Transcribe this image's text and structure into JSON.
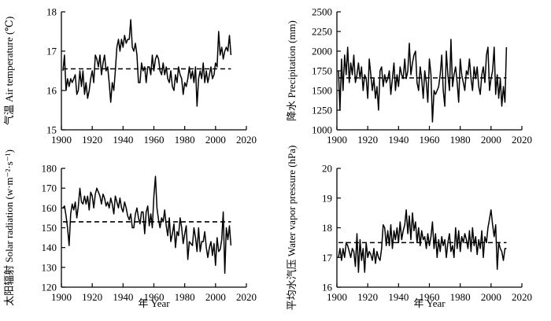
{
  "chart_data": [
    {
      "type": "line",
      "ylabel": "气温 Air temperature (℃)",
      "xlabel": "",
      "xlim": [
        1900,
        2020
      ],
      "ylim": [
        15,
        18
      ],
      "xticks": [
        1900,
        1920,
        1940,
        1960,
        1980,
        2000,
        2020
      ],
      "yticks": [
        15,
        16,
        17,
        18
      ],
      "x": [
        1901,
        1902,
        1903,
        1904,
        1905,
        1906,
        1907,
        1908,
        1909,
        1910,
        1911,
        1912,
        1913,
        1914,
        1915,
        1916,
        1917,
        1918,
        1919,
        1920,
        1921,
        1922,
        1923,
        1924,
        1925,
        1926,
        1927,
        1928,
        1929,
        1930,
        1931,
        1932,
        1933,
        1934,
        1935,
        1936,
        1937,
        1938,
        1939,
        1940,
        1941,
        1942,
        1943,
        1944,
        1945,
        1946,
        1947,
        1948,
        1949,
        1950,
        1951,
        1952,
        1953,
        1954,
        1955,
        1956,
        1957,
        1958,
        1959,
        1960,
        1961,
        1962,
        1963,
        1964,
        1965,
        1966,
        1967,
        1968,
        1969,
        1970,
        1971,
        1972,
        1973,
        1974,
        1975,
        1976,
        1977,
        1978,
        1979,
        1980,
        1981,
        1982,
        1983,
        1984,
        1985,
        1986,
        1987,
        1988,
        1989,
        1990,
        1991,
        1992,
        1993,
        1994,
        1995,
        1996,
        1997,
        1998,
        1999,
        2000,
        2001,
        2002,
        2003,
        2004,
        2005,
        2006,
        2007,
        2008,
        2009,
        2010
      ],
      "values": [
        16.5,
        16.9,
        16.0,
        16.3,
        16.1,
        16.3,
        16.2,
        16.3,
        16.4,
        15.9,
        16.0,
        16.5,
        16.1,
        16.5,
        15.9,
        16.2,
        15.8,
        16.0,
        16.3,
        16.5,
        16.2,
        16.9,
        16.8,
        16.6,
        16.9,
        16.4,
        16.7,
        16.9,
        16.5,
        16.6,
        16.2,
        15.7,
        16.2,
        16.0,
        16.5,
        17.1,
        17.3,
        17.0,
        17.3,
        17.1,
        17.4,
        17.2,
        17.3,
        17.3,
        17.8,
        17.1,
        17.0,
        17.2,
        16.9,
        16.2,
        16.2,
        16.7,
        16.5,
        16.6,
        16.2,
        16.6,
        16.6,
        16.4,
        16.9,
        16.5,
        16.8,
        16.9,
        16.8,
        16.5,
        16.4,
        16.7,
        16.4,
        16.6,
        16.3,
        16.2,
        16.5,
        16.1,
        16.0,
        16.4,
        16.2,
        16.6,
        16.4,
        16.3,
        15.9,
        16.2,
        16.1,
        16.3,
        16.6,
        16.3,
        16.5,
        16.2,
        16.6,
        15.6,
        16.3,
        16.5,
        16.3,
        16.7,
        16.2,
        16.5,
        16.2,
        16.4,
        16.6,
        16.3,
        16.4,
        16.7,
        16.6,
        17.5,
        16.9,
        17.1,
        16.8,
        17.0,
        17.1,
        17.0,
        17.4,
        16.9
      ],
      "mean": 16.55
    },
    {
      "type": "line",
      "ylabel": "降水 Precipitation (mm)",
      "xlabel": "",
      "xlim": [
        1900,
        2020
      ],
      "ylim": [
        1000,
        2500
      ],
      "xticks": [
        1900,
        1920,
        1940,
        1960,
        1980,
        2000,
        2020
      ],
      "yticks": [
        1000,
        1250,
        1500,
        1750,
        2000,
        2250,
        2500
      ],
      "x": [
        1901,
        1902,
        1903,
        1904,
        1905,
        1906,
        1907,
        1908,
        1909,
        1910,
        1911,
        1912,
        1913,
        1914,
        1915,
        1916,
        1917,
        1918,
        1919,
        1920,
        1921,
        1922,
        1923,
        1924,
        1925,
        1926,
        1927,
        1928,
        1929,
        1930,
        1931,
        1932,
        1933,
        1934,
        1935,
        1936,
        1937,
        1938,
        1939,
        1940,
        1941,
        1942,
        1943,
        1944,
        1945,
        1946,
        1947,
        1948,
        1949,
        1950,
        1951,
        1952,
        1953,
        1954,
        1955,
        1956,
        1957,
        1958,
        1959,
        1960,
        1961,
        1962,
        1963,
        1964,
        1965,
        1966,
        1967,
        1968,
        1969,
        1970,
        1971,
        1972,
        1973,
        1974,
        1975,
        1976,
        1977,
        1978,
        1979,
        1980,
        1981,
        1982,
        1983,
        1984,
        1985,
        1986,
        1987,
        1988,
        1989,
        1990,
        1991,
        1992,
        1993,
        1994,
        1995,
        1996,
        1997,
        1998,
        1999,
        2000,
        2001,
        2002,
        2003,
        2004,
        2005,
        2006,
        2007,
        2008,
        2009,
        2010
      ],
      "values": [
        1750,
        1250,
        1900,
        1500,
        1950,
        1700,
        2050,
        1600,
        1850,
        1700,
        1950,
        1600,
        1700,
        1850,
        1650,
        1800,
        1500,
        1700,
        1650,
        1400,
        1900,
        1700,
        1500,
        1650,
        1400,
        1550,
        1250,
        1750,
        1800,
        1550,
        1700,
        1600,
        1650,
        1750,
        1450,
        1650,
        1850,
        1500,
        1700,
        1550,
        1800,
        1700,
        1650,
        1900,
        1650,
        1750,
        2100,
        1700,
        1850,
        1950,
        2000,
        1600,
        1500,
        1800,
        1650,
        1400,
        1750,
        1600,
        1350,
        1900,
        1700,
        1100,
        1500,
        1450,
        1500,
        1550,
        1700,
        1950,
        1500,
        1300,
        2000,
        1700,
        1500,
        2150,
        1550,
        1700,
        1800,
        1600,
        1350,
        1900,
        1700,
        1600,
        1500,
        1750,
        1700,
        1900,
        1650,
        1500,
        1800,
        1650,
        1800,
        1550,
        1450,
        1700,
        1800,
        1600,
        1950,
        2050,
        1500,
        1650,
        1750,
        2050,
        1450,
        1700,
        1400,
        1650,
        1300,
        1550,
        1350,
        2050
      ],
      "mean": 1660
    },
    {
      "type": "line",
      "ylabel": "太阳辐射 Solar radiation (w·m⁻²·s⁻¹)",
      "xlabel": "年 Year",
      "xlim": [
        1900,
        2020
      ],
      "ylim": [
        120,
        180
      ],
      "xticks": [
        1900,
        1920,
        1940,
        1960,
        1980,
        2000,
        2020
      ],
      "yticks": [
        120,
        130,
        140,
        150,
        160,
        170,
        180
      ],
      "x": [
        1901,
        1902,
        1903,
        1904,
        1905,
        1906,
        1907,
        1908,
        1909,
        1910,
        1911,
        1912,
        1913,
        1914,
        1915,
        1916,
        1917,
        1918,
        1919,
        1920,
        1921,
        1922,
        1923,
        1924,
        1925,
        1926,
        1927,
        1928,
        1929,
        1930,
        1931,
        1932,
        1933,
        1934,
        1935,
        1936,
        1937,
        1938,
        1939,
        1940,
        1941,
        1942,
        1943,
        1944,
        1945,
        1946,
        1947,
        1948,
        1949,
        1950,
        1951,
        1952,
        1953,
        1954,
        1955,
        1956,
        1957,
        1958,
        1959,
        1960,
        1961,
        1962,
        1963,
        1964,
        1965,
        1966,
        1967,
        1968,
        1969,
        1970,
        1971,
        1972,
        1973,
        1974,
        1975,
        1976,
        1977,
        1978,
        1979,
        1980,
        1981,
        1982,
        1983,
        1984,
        1985,
        1986,
        1987,
        1988,
        1989,
        1990,
        1991,
        1992,
        1993,
        1994,
        1995,
        1996,
        1997,
        1998,
        1999,
        2000,
        2001,
        2002,
        2003,
        2004,
        2005,
        2006,
        2007,
        2008,
        2009,
        2010
      ],
      "values": [
        160,
        161,
        156,
        150,
        141,
        157,
        162,
        159,
        163,
        155,
        161,
        170,
        163,
        162,
        166,
        162,
        166,
        159,
        168,
        166,
        160,
        167,
        170,
        168,
        166,
        162,
        167,
        165,
        161,
        163,
        160,
        165,
        162,
        157,
        166,
        163,
        160,
        165,
        160,
        158,
        163,
        160,
        156,
        154,
        157,
        150,
        150,
        157,
        160,
        155,
        152,
        158,
        158,
        147,
        158,
        161,
        151,
        157,
        150,
        166,
        176,
        160,
        154,
        150,
        155,
        153,
        159,
        151,
        146,
        155,
        143,
        147,
        152,
        140,
        148,
        146,
        155,
        150,
        142,
        147,
        151,
        134,
        143,
        142,
        141,
        150,
        145,
        138,
        150,
        138,
        143,
        143,
        148,
        140,
        135,
        140,
        143,
        136,
        142,
        131,
        145,
        138,
        139,
        144,
        158,
        127,
        150,
        144,
        151,
        141
      ],
      "mean": 153
    },
    {
      "type": "line",
      "ylabel": "平均水汽压 Water vapor pressure (hPa)",
      "xlabel": "年 Year",
      "xlim": [
        1900,
        2020
      ],
      "ylim": [
        16,
        20
      ],
      "xticks": [
        1900,
        1920,
        1940,
        1960,
        1980,
        2000,
        2020
      ],
      "yticks": [
        16,
        17,
        18,
        19,
        20
      ],
      "x": [
        1901,
        1902,
        1903,
        1904,
        1905,
        1906,
        1907,
        1908,
        1909,
        1910,
        1911,
        1912,
        1913,
        1914,
        1915,
        1916,
        1917,
        1918,
        1919,
        1920,
        1921,
        1922,
        1923,
        1924,
        1925,
        1926,
        1927,
        1928,
        1929,
        1930,
        1931,
        1932,
        1933,
        1934,
        1935,
        1936,
        1937,
        1938,
        1939,
        1940,
        1941,
        1942,
        1943,
        1944,
        1945,
        1946,
        1947,
        1948,
        1949,
        1950,
        1951,
        1952,
        1953,
        1954,
        1955,
        1956,
        1957,
        1958,
        1959,
        1960,
        1961,
        1962,
        1963,
        1964,
        1965,
        1966,
        1967,
        1968,
        1969,
        1970,
        1971,
        1972,
        1973,
        1974,
        1975,
        1976,
        1977,
        1978,
        1979,
        1980,
        1981,
        1982,
        1983,
        1984,
        1985,
        1986,
        1987,
        1988,
        1989,
        1990,
        1991,
        1992,
        1993,
        1994,
        1995,
        1996,
        1997,
        1998,
        1999,
        2000,
        2001,
        2002,
        2003,
        2004,
        2005,
        2006,
        2007,
        2008,
        2009,
        2010
      ],
      "values": [
        17.0,
        17.3,
        16.9,
        17.3,
        17.0,
        17.5,
        17.4,
        17.2,
        17.0,
        17.3,
        17.2,
        16.7,
        17.8,
        16.5,
        17.6,
        16.9,
        17.3,
        16.5,
        17.5,
        17.0,
        17.2,
        17.1,
        16.9,
        17.3,
        16.8,
        17.2,
        17.0,
        16.9,
        17.3,
        18.1,
        18.0,
        17.4,
        17.9,
        17.4,
        18.1,
        17.3,
        17.9,
        17.6,
        18.0,
        17.5,
        18.2,
        17.6,
        17.9,
        18.1,
        18.6,
        17.8,
        18.4,
        17.6,
        18.5,
        17.9,
        18.2,
        17.5,
        18.0,
        17.4,
        17.9,
        17.6,
        17.7,
        17.3,
        17.8,
        17.4,
        17.7,
        18.2,
        17.3,
        17.8,
        17.0,
        17.6,
        17.2,
        17.7,
        17.4,
        17.6,
        17.0,
        17.5,
        17.8,
        17.2,
        17.4,
        17.0,
        18.0,
        17.3,
        17.9,
        17.2,
        17.7,
        17.5,
        17.8,
        17.6,
        17.3,
        17.9,
        17.2,
        18.0,
        17.4,
        17.7,
        17.1,
        17.6,
        17.3,
        17.9,
        17.0,
        17.7,
        17.5,
        18.0,
        18.3,
        18.6,
        18.1,
        17.7,
        18.1,
        16.6,
        17.5,
        17.3,
        17.2,
        16.9,
        17.3,
        17.3
      ],
      "mean": 17.5
    }
  ]
}
